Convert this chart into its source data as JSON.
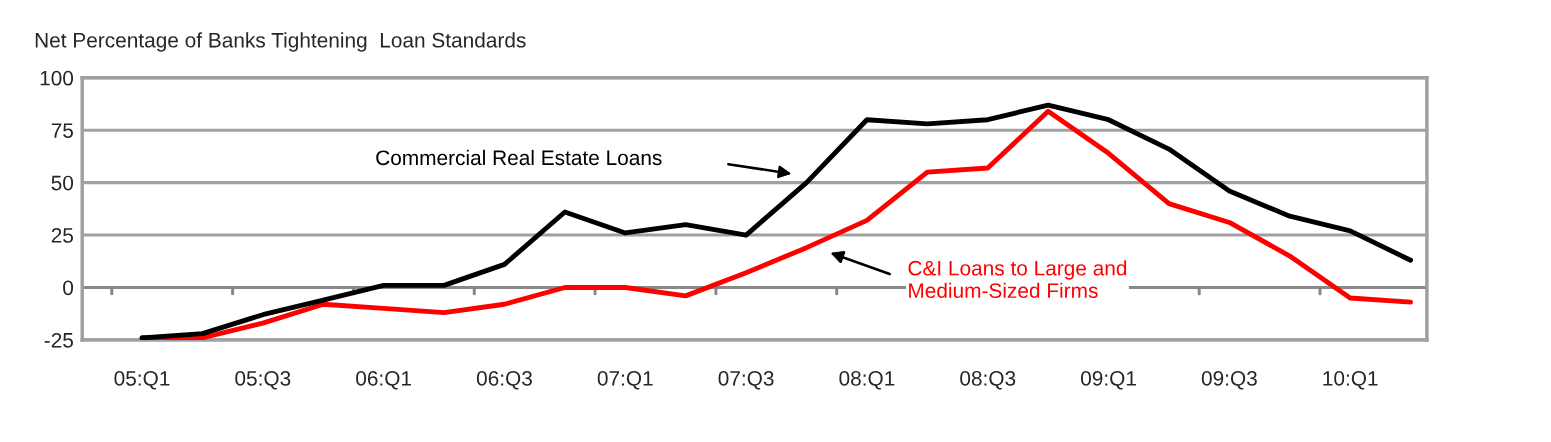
{
  "chart_data": {
    "type": "line",
    "title": "Net Percentage of Banks Tightening  Loan Standards",
    "categories": [
      "05:Q1",
      null,
      "05:Q3",
      null,
      "06:Q1",
      null,
      "06:Q3",
      null,
      "07:Q1",
      null,
      "07:Q3",
      null,
      "08:Q1",
      null,
      "08:Q3",
      null,
      "09:Q1",
      null,
      "09:Q3",
      null,
      "10:Q1",
      null
    ],
    "series": [
      {
        "color": "#000000",
        "values": [
          -24,
          -22,
          -13,
          -6,
          1,
          1,
          11,
          36,
          26,
          30,
          25,
          50,
          80,
          78,
          80,
          87,
          80,
          66,
          46,
          34,
          27,
          13
        ]
      },
      {
        "color": "#ff0000",
        "values": [
          -24,
          -24,
          -17,
          -8,
          -10,
          -12,
          -8,
          0,
          0,
          -4,
          7,
          19,
          32,
          55,
          57,
          84,
          64,
          40,
          31,
          15,
          -5,
          -7
        ]
      }
    ],
    "ylim": [
      -25,
      100
    ],
    "yticks": [
      -25,
      0,
      25,
      50,
      75,
      100
    ],
    "grid": "y",
    "legend": false,
    "marker": "none",
    "line_style": "solid",
    "annotations": [
      "Commercial Real Estate Loans",
      "C&I Loans to Large and\nMedium-Sized Firms"
    ]
  }
}
